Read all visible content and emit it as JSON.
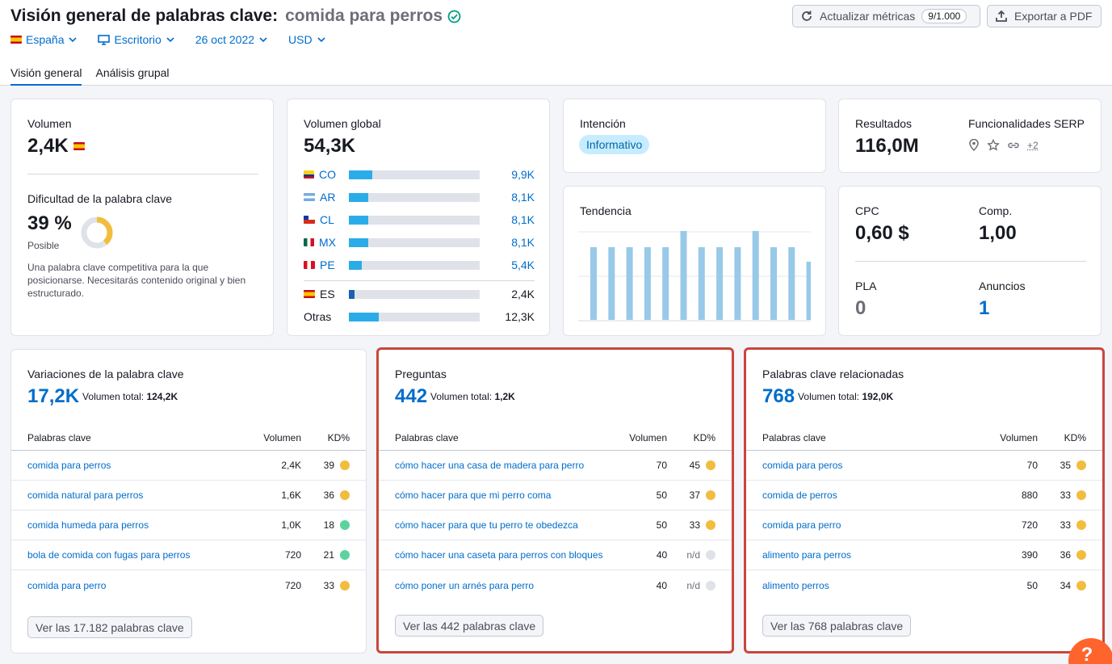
{
  "header": {
    "title": "Visión general de palabras clave:",
    "keyword": "comida para perros",
    "refresh_label": "Actualizar métricas",
    "refresh_badge": "9/1.000",
    "export_label": "Exportar a PDF"
  },
  "filters": {
    "country": "España",
    "device": "Escritorio",
    "date": "26 oct 2022",
    "currency": "USD"
  },
  "tabs": [
    {
      "label": "Visión general",
      "active": true
    },
    {
      "label": "Análisis grupal",
      "active": false
    }
  ],
  "volume_card": {
    "label": "Volumen",
    "value": "2,4K",
    "kd_label": "Dificultad de la palabra clave",
    "kd_value": "39 %",
    "kd_text": "Posible",
    "kd_percent": 39,
    "kd_description": "Una palabra clave competitiva para la que posicionarse. Necesitarás contenido original y bien estructurado."
  },
  "global_volume": {
    "label": "Volumen global",
    "value": "54,3K",
    "rows": [
      {
        "code": "CO",
        "value": "9,9K",
        "share": 0.18
      },
      {
        "code": "AR",
        "value": "8,1K",
        "share": 0.15
      },
      {
        "code": "CL",
        "value": "8,1K",
        "share": 0.15
      },
      {
        "code": "MX",
        "value": "8,1K",
        "share": 0.15
      },
      {
        "code": "PE",
        "value": "5,4K",
        "share": 0.1
      }
    ],
    "es_row": {
      "code": "ES",
      "value": "2,4K",
      "share": 0.045
    },
    "others_row": {
      "code": "Otras",
      "value": "12,3K",
      "share": 0.23
    }
  },
  "intent": {
    "label": "Intención",
    "value": "Informativo"
  },
  "trend": {
    "label": "Tendencia",
    "values": [
      0.82,
      0.82,
      0.82,
      0.82,
      0.82,
      1.0,
      0.82,
      0.82,
      0.82,
      1.0,
      0.82,
      0.82,
      0.65
    ]
  },
  "results": {
    "label": "Resultados",
    "value": "116,0M",
    "serp_label": "Funcionalidades SERP",
    "serp_more": "+2"
  },
  "cpc": {
    "cpc_label": "CPC",
    "cpc_value": "0,60 $",
    "comp_label": "Comp.",
    "comp_value": "1,00",
    "pla_label": "PLA",
    "pla_value": "0",
    "ads_label": "Anuncios",
    "ads_value": "1"
  },
  "colors": {
    "accent": "#006dca",
    "kd_yellow": "#f2bd3f",
    "kd_green": "#5ad49c",
    "kd_na": "#dfe2e8",
    "highlight": "#c9463d"
  },
  "variations": {
    "title": "Variaciones de la palabra clave",
    "count": "17,2K",
    "total_label": "Volumen total:",
    "total_value": "124,2K",
    "col_kw": "Palabras clave",
    "col_vol": "Volumen",
    "col_kd": "KD%",
    "rows": [
      {
        "kw": "comida para perros",
        "vol": "2,4K",
        "kd": "39",
        "dot": "yellow"
      },
      {
        "kw": "comida natural para perros",
        "vol": "1,6K",
        "kd": "36",
        "dot": "yellow"
      },
      {
        "kw": "comida humeda para perros",
        "vol": "1,0K",
        "kd": "18",
        "dot": "green"
      },
      {
        "kw": "bola de comida con fugas para perros",
        "vol": "720",
        "kd": "21",
        "dot": "green"
      },
      {
        "kw": "comida para perro",
        "vol": "720",
        "kd": "33",
        "dot": "yellow"
      }
    ],
    "button": "Ver las 17.182 palabras clave"
  },
  "questions": {
    "title": "Preguntas",
    "count": "442",
    "total_label": "Volumen total:",
    "total_value": "1,2K",
    "col_kw": "Palabras clave",
    "col_vol": "Volumen",
    "col_kd": "KD%",
    "rows": [
      {
        "kw": "cómo hacer una casa de madera para perro",
        "vol": "70",
        "kd": "45",
        "dot": "yellow"
      },
      {
        "kw": "cómo hacer para que mi perro coma",
        "vol": "50",
        "kd": "37",
        "dot": "yellow"
      },
      {
        "kw": "cómo hacer para que tu perro te obedezca",
        "vol": "50",
        "kd": "33",
        "dot": "yellow"
      },
      {
        "kw": "cómo hacer una caseta para perros con bloques",
        "vol": "40",
        "kd": "n/d",
        "dot": "na"
      },
      {
        "kw": "cómo poner un arnés para perro",
        "vol": "40",
        "kd": "n/d",
        "dot": "na"
      }
    ],
    "button": "Ver las 442 palabras clave"
  },
  "related": {
    "title": "Palabras clave relacionadas",
    "count": "768",
    "total_label": "Volumen total:",
    "total_value": "192,0K",
    "col_kw": "Palabras clave",
    "col_vol": "Volumen",
    "col_kd": "KD%",
    "rows": [
      {
        "kw": "comida para peros",
        "vol": "70",
        "kd": "35",
        "dot": "yellow"
      },
      {
        "kw": "comida de perros",
        "vol": "880",
        "kd": "33",
        "dot": "yellow"
      },
      {
        "kw": "comida para perro",
        "vol": "720",
        "kd": "33",
        "dot": "yellow"
      },
      {
        "kw": "alimento para perros",
        "vol": "390",
        "kd": "36",
        "dot": "yellow"
      },
      {
        "kw": "alimento perros",
        "vol": "50",
        "kd": "34",
        "dot": "yellow"
      }
    ],
    "button": "Ver las 768 palabras clave"
  },
  "help_label": "?"
}
